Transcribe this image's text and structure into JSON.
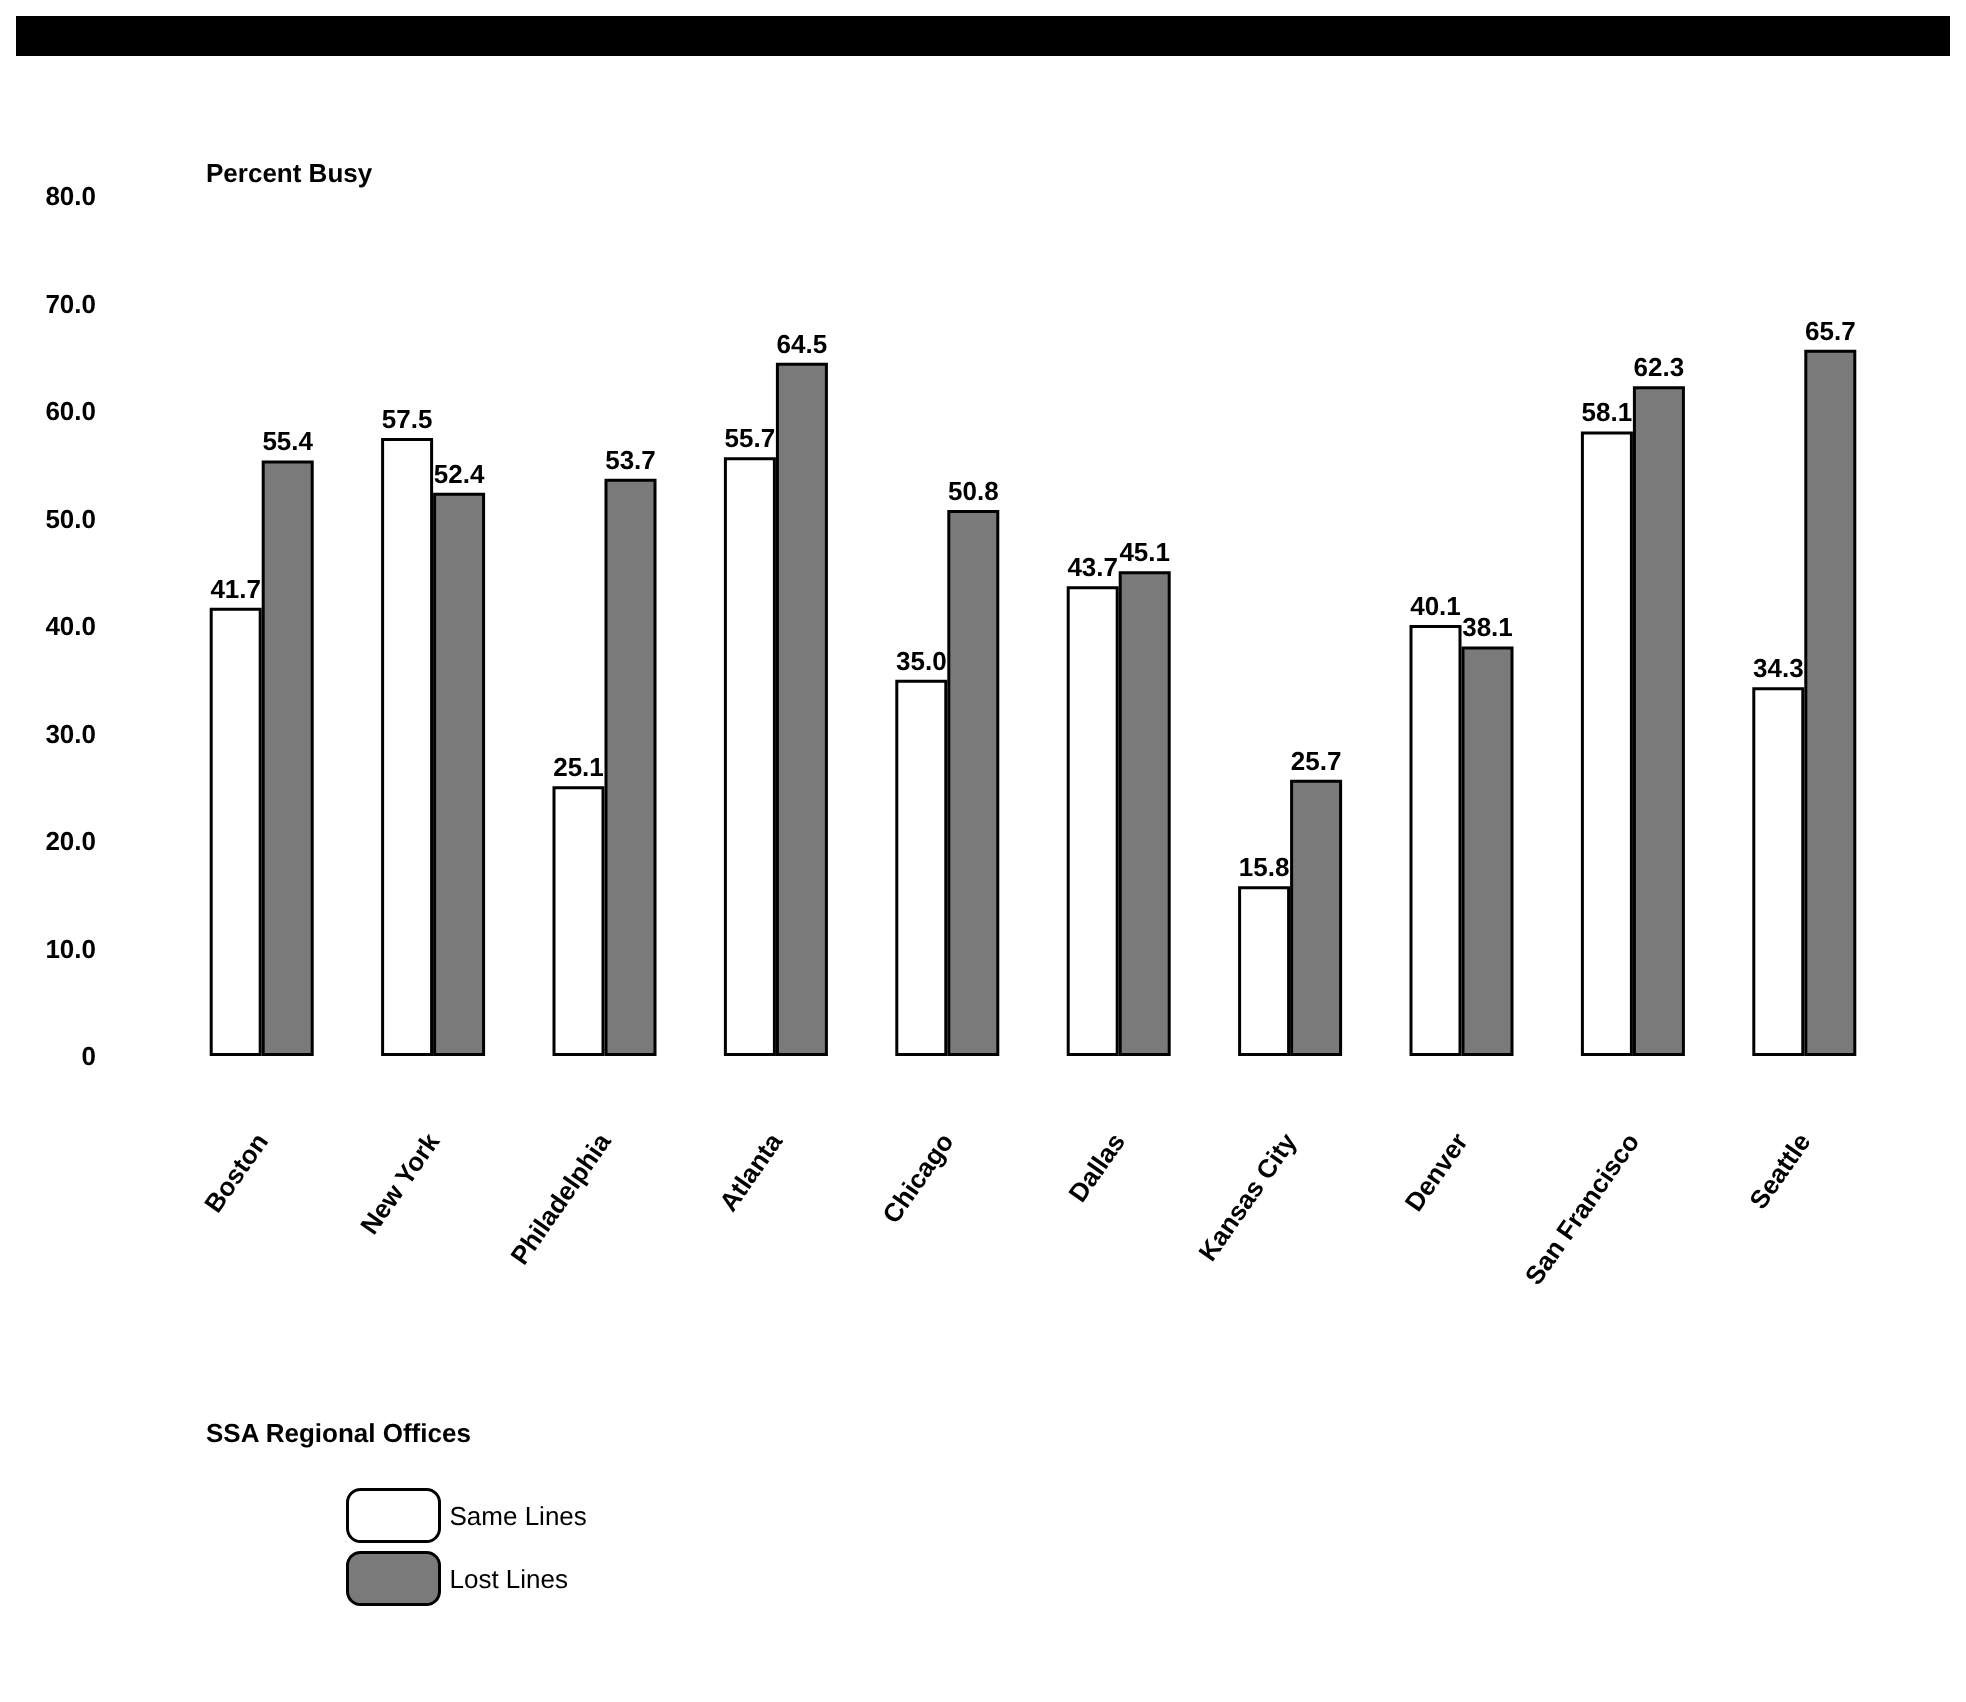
{
  "chart_data": {
    "type": "bar",
    "ylabel": "Percent Busy",
    "xlabel": "SSA Regional Offices",
    "categories": [
      "Boston",
      "New York",
      "Philadelphia",
      "Atlanta",
      "Chicago",
      "Dallas",
      "Kansas City",
      "Denver",
      "San Francisco",
      "Seattle"
    ],
    "series": [
      {
        "name": "Same Lines",
        "color": "#ffffff",
        "values": [
          41.7,
          57.5,
          25.1,
          55.7,
          35.0,
          43.7,
          15.8,
          40.1,
          58.1,
          34.3
        ],
        "value_labels": [
          "41.7",
          "57.5",
          "25.1",
          "55.7",
          "35.0",
          "43.7",
          "15.8",
          "40.1",
          "58.1",
          "34.3"
        ]
      },
      {
        "name": "Lost Lines",
        "color": "#7a7a7a",
        "values": [
          55.4,
          52.4,
          53.7,
          64.5,
          50.8,
          45.1,
          25.7,
          38.1,
          62.3,
          65.7
        ],
        "value_labels": [
          "55.4",
          "52.4",
          "53.7",
          "64.5",
          "50.8",
          "45.1",
          "25.7",
          "38.1",
          "62.3",
          "65.7"
        ]
      }
    ],
    "ylim": [
      0,
      80
    ],
    "yticks": [
      {
        "value": 0,
        "label": "0"
      },
      {
        "value": 10,
        "label": "10.0"
      },
      {
        "value": 20,
        "label": "20.0"
      },
      {
        "value": 30,
        "label": "30.0"
      },
      {
        "value": 40,
        "label": "40.0"
      },
      {
        "value": 50,
        "label": "50.0"
      },
      {
        "value": 60,
        "label": "60.0"
      },
      {
        "value": 70,
        "label": "70.0"
      },
      {
        "value": 80,
        "label": "80.0"
      }
    ],
    "grid": false,
    "legend": "bottom left"
  }
}
